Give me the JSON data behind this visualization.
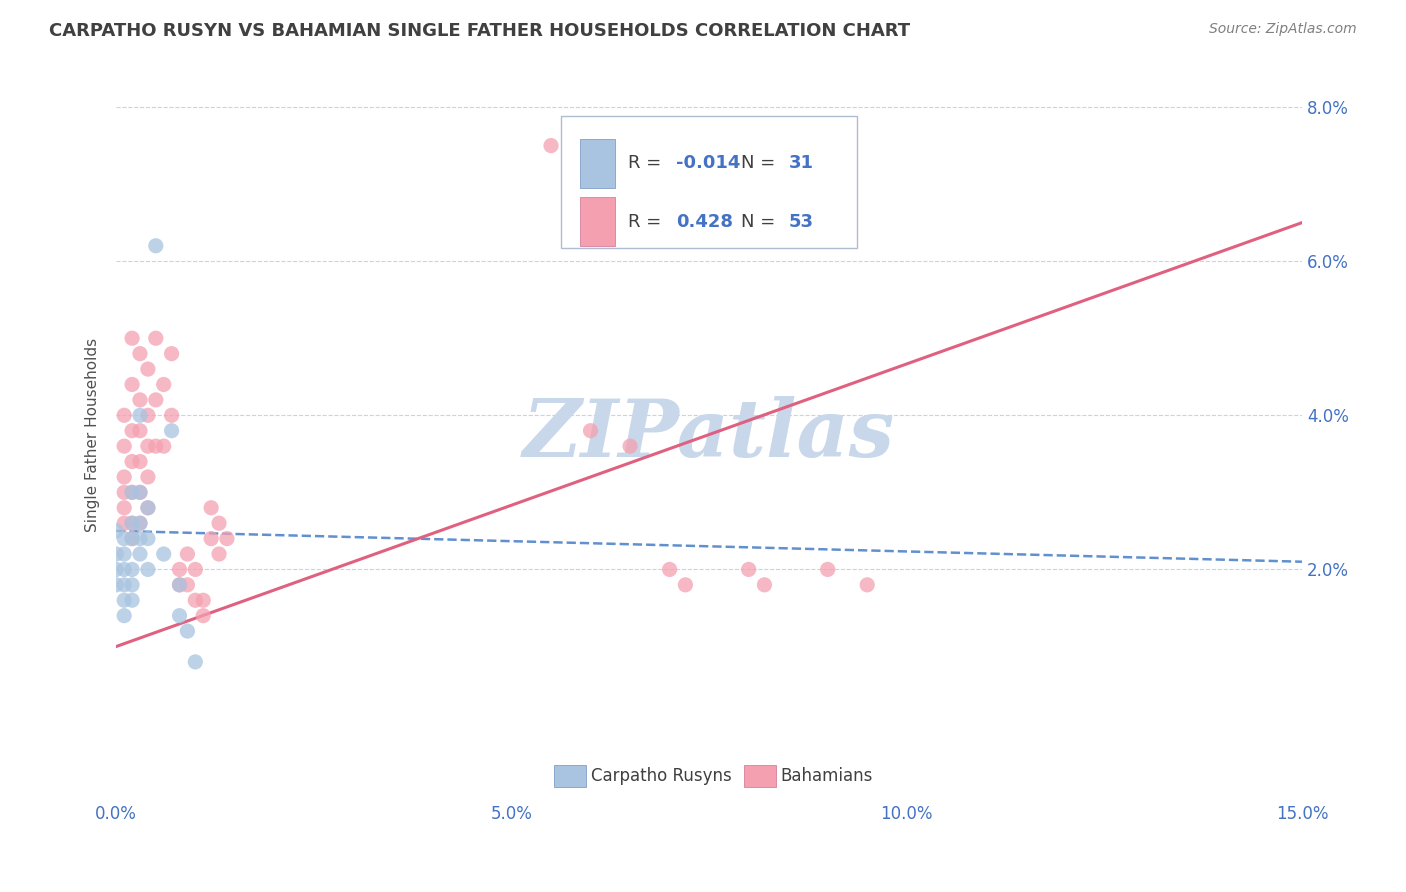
{
  "title": "CARPATHO RUSYN VS BAHAMIAN SINGLE FATHER HOUSEHOLDS CORRELATION CHART",
  "source": "Source: ZipAtlas.com",
  "ylabel": "Single Father Households",
  "x_min": 0.0,
  "x_max": 0.15,
  "y_min": -0.01,
  "y_max": 0.085,
  "x_ticks": [
    0.0,
    0.05,
    0.1,
    0.15
  ],
  "x_tick_labels": [
    "0.0%",
    "5.0%",
    "10.0%",
    "15.0%"
  ],
  "y_ticks": [
    0.02,
    0.04,
    0.06,
    0.08
  ],
  "y_tick_labels": [
    "2.0%",
    "4.0%",
    "6.0%",
    "8.0%"
  ],
  "legend_x_label": "Carpatho Rusyns",
  "legend_pink_label": "Bahamians",
  "r_blue": -0.014,
  "n_blue": 31,
  "r_pink": 0.428,
  "n_pink": 53,
  "color_blue": "#a8c4e0",
  "color_pink": "#f4a0b0",
  "color_blue_line": "#6090d0",
  "color_pink_line": "#e06080",
  "watermark": "ZIPatlas",
  "watermark_color": "#c8d8ea",
  "background_color": "#ffffff",
  "grid_color": "#c8d4e4",
  "title_color": "#404040",
  "axis_label_color": "#505050",
  "tick_label_color": "#4472c4",
  "legend_rn_color": "#4472c4",
  "blue_scatter": [
    [
      0.0,
      0.025
    ],
    [
      0.0,
      0.022
    ],
    [
      0.0,
      0.02
    ],
    [
      0.0,
      0.018
    ],
    [
      0.001,
      0.024
    ],
    [
      0.001,
      0.022
    ],
    [
      0.001,
      0.02
    ],
    [
      0.001,
      0.018
    ],
    [
      0.001,
      0.016
    ],
    [
      0.001,
      0.014
    ],
    [
      0.002,
      0.03
    ],
    [
      0.002,
      0.026
    ],
    [
      0.002,
      0.024
    ],
    [
      0.002,
      0.02
    ],
    [
      0.002,
      0.018
    ],
    [
      0.002,
      0.016
    ],
    [
      0.003,
      0.03
    ],
    [
      0.003,
      0.026
    ],
    [
      0.003,
      0.024
    ],
    [
      0.003,
      0.022
    ],
    [
      0.003,
      0.04
    ],
    [
      0.004,
      0.028
    ],
    [
      0.004,
      0.024
    ],
    [
      0.004,
      0.02
    ],
    [
      0.005,
      0.062
    ],
    [
      0.006,
      0.022
    ],
    [
      0.007,
      0.038
    ],
    [
      0.008,
      0.018
    ],
    [
      0.008,
      0.014
    ],
    [
      0.009,
      0.012
    ],
    [
      0.01,
      0.008
    ]
  ],
  "pink_scatter": [
    [
      0.001,
      0.04
    ],
    [
      0.001,
      0.036
    ],
    [
      0.001,
      0.032
    ],
    [
      0.001,
      0.03
    ],
    [
      0.001,
      0.028
    ],
    [
      0.001,
      0.026
    ],
    [
      0.002,
      0.05
    ],
    [
      0.002,
      0.044
    ],
    [
      0.002,
      0.038
    ],
    [
      0.002,
      0.034
    ],
    [
      0.002,
      0.03
    ],
    [
      0.002,
      0.026
    ],
    [
      0.002,
      0.024
    ],
    [
      0.003,
      0.048
    ],
    [
      0.003,
      0.042
    ],
    [
      0.003,
      0.038
    ],
    [
      0.003,
      0.034
    ],
    [
      0.003,
      0.03
    ],
    [
      0.003,
      0.026
    ],
    [
      0.004,
      0.046
    ],
    [
      0.004,
      0.04
    ],
    [
      0.004,
      0.036
    ],
    [
      0.004,
      0.032
    ],
    [
      0.004,
      0.028
    ],
    [
      0.005,
      0.05
    ],
    [
      0.005,
      0.042
    ],
    [
      0.005,
      0.036
    ],
    [
      0.006,
      0.044
    ],
    [
      0.006,
      0.036
    ],
    [
      0.007,
      0.048
    ],
    [
      0.007,
      0.04
    ],
    [
      0.008,
      0.02
    ],
    [
      0.008,
      0.018
    ],
    [
      0.009,
      0.022
    ],
    [
      0.009,
      0.018
    ],
    [
      0.01,
      0.02
    ],
    [
      0.01,
      0.016
    ],
    [
      0.011,
      0.016
    ],
    [
      0.011,
      0.014
    ],
    [
      0.012,
      0.028
    ],
    [
      0.012,
      0.024
    ],
    [
      0.013,
      0.026
    ],
    [
      0.013,
      0.022
    ],
    [
      0.014,
      0.024
    ],
    [
      0.055,
      0.075
    ],
    [
      0.06,
      0.038
    ],
    [
      0.065,
      0.036
    ],
    [
      0.07,
      0.02
    ],
    [
      0.072,
      0.018
    ],
    [
      0.08,
      0.02
    ],
    [
      0.082,
      0.018
    ],
    [
      0.09,
      0.02
    ],
    [
      0.095,
      0.018
    ]
  ]
}
